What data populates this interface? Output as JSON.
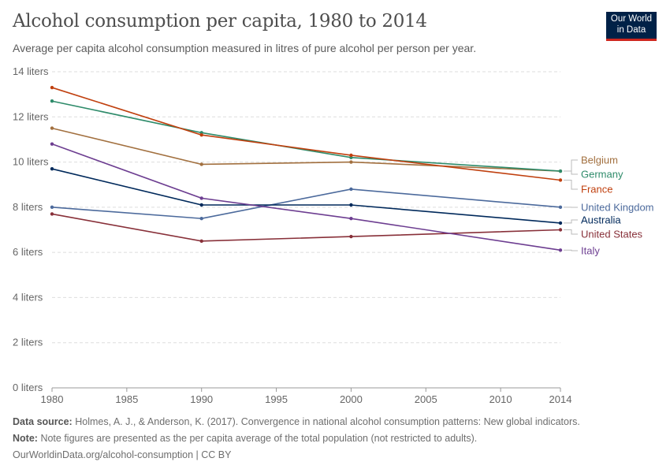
{
  "header": {
    "title": "Alcohol consumption per capita, 1980 to 2014",
    "subtitle": "Average per capita alcohol consumption measured in litres of pure alcohol per person per year.",
    "logo_line1": "Our World",
    "logo_line2": "in Data"
  },
  "footer": {
    "source_label": "Data source:",
    "source": "Holmes, A. J., & Anderson, K. (2017). Convergence in national alcohol consumption patterns: New global indicators.",
    "note_label": "Note:",
    "note": "Note figures are presented as the per capita average of the total population (not restricted to adults).",
    "url": "OurWorldinData.org/alcohol-consumption | CC BY"
  },
  "chart_data": {
    "type": "line",
    "title": "Alcohol consumption per capita, 1980 to 2014",
    "x": [
      1980,
      1990,
      2000,
      2014
    ],
    "xlim": [
      1980,
      2014
    ],
    "xticks": [
      "1980",
      "1985",
      "1990",
      "1995",
      "2000",
      "2005",
      "2010",
      "2014"
    ],
    "ylim": [
      0,
      14
    ],
    "yticks": [
      "0 liters",
      "2 liters",
      "4 liters",
      "6 liters",
      "8 liters",
      "10 liters",
      "12 liters",
      "14 liters"
    ],
    "grid": "horizontal dashed",
    "legend": "right, inline labels",
    "series": [
      {
        "name": "Belgium",
        "color": "#a2703f",
        "values": [
          11.5,
          9.9,
          10.0,
          9.6
        ]
      },
      {
        "name": "Germany",
        "color": "#2e8b6a",
        "values": [
          12.7,
          11.3,
          10.2,
          9.6
        ]
      },
      {
        "name": "France",
        "color": "#c0400f",
        "values": [
          13.3,
          11.2,
          10.3,
          9.2
        ]
      },
      {
        "name": "United Kingdom",
        "color": "#4c6a9c",
        "values": [
          8.0,
          7.5,
          8.8,
          8.0
        ]
      },
      {
        "name": "Australia",
        "color": "#00295b",
        "values": [
          9.7,
          8.1,
          8.1,
          7.3
        ]
      },
      {
        "name": "United States",
        "color": "#883039",
        "values": [
          7.7,
          6.5,
          6.7,
          7.0
        ]
      },
      {
        "name": "Italy",
        "color": "#6d3e91",
        "values": [
          10.8,
          8.4,
          7.5,
          6.1
        ]
      }
    ]
  }
}
